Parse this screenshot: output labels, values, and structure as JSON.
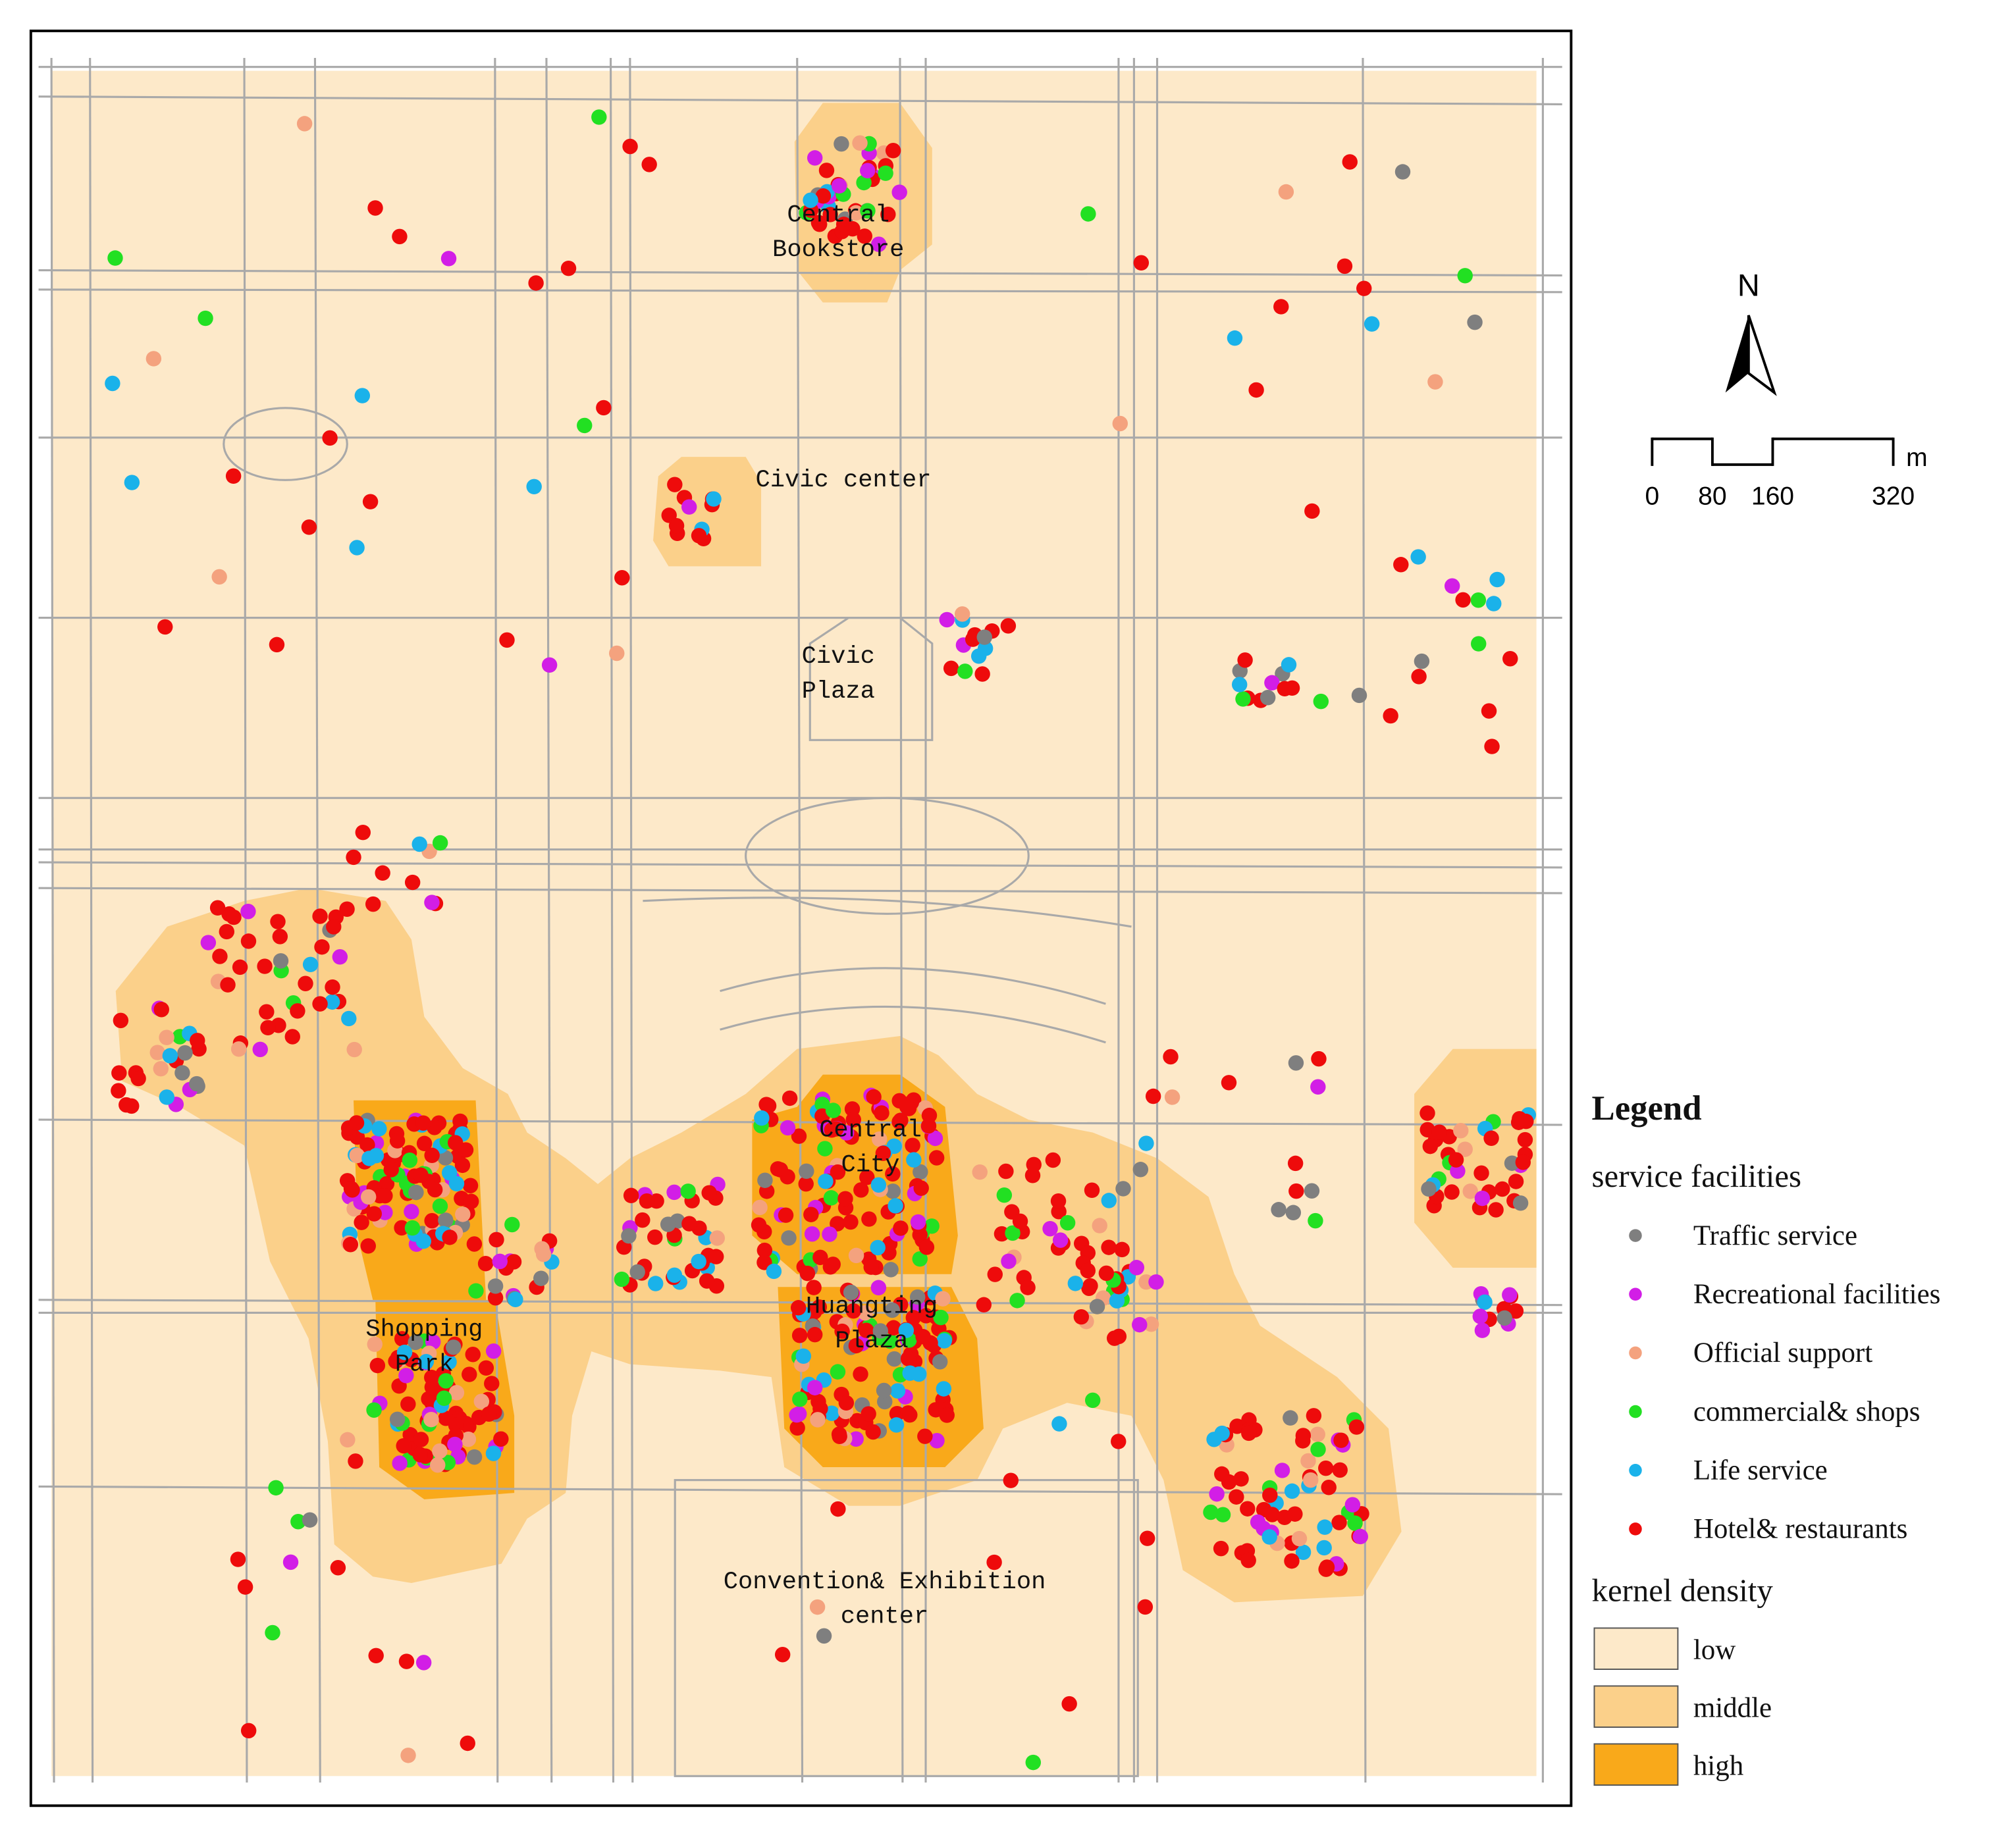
{
  "map": {
    "labels": [
      [
        "Central",
        "Bookstore"
      ],
      [
        "Civic center"
      ],
      [
        "Civic",
        "Plaza"
      ],
      [
        "Central",
        "City"
      ],
      [
        "Huangting",
        "Plaza"
      ],
      [
        "Shopping",
        "Park"
      ],
      [
        "Convention& Exhibition",
        "center"
      ]
    ],
    "north": "N",
    "scale_bar": {
      "ticks": [
        0,
        80,
        160,
        320
      ],
      "unit": "m"
    },
    "legend": {
      "title": "Legend",
      "facilities_title": "service facilities",
      "facilities": [
        {
          "name": "Traffic service",
          "color": "#7f7f7f"
        },
        {
          "name": "Recreational facilities",
          "color": "#d21ee6"
        },
        {
          "name": "Official support",
          "color": "#f4a27e"
        },
        {
          "name": "commercial& shops",
          "color": "#22e022"
        },
        {
          "name": "Life service",
          "color": "#1ab2ea"
        },
        {
          "name": "Hotel& restaurants",
          "color": "#ee0b0b"
        }
      ],
      "density_title": "kernel density",
      "density": [
        {
          "name": "low",
          "color": "#fde9c9"
        },
        {
          "name": "middle",
          "color": "#fbd08a"
        },
        {
          "name": "high",
          "color": "#f9a91a"
        }
      ]
    }
  }
}
